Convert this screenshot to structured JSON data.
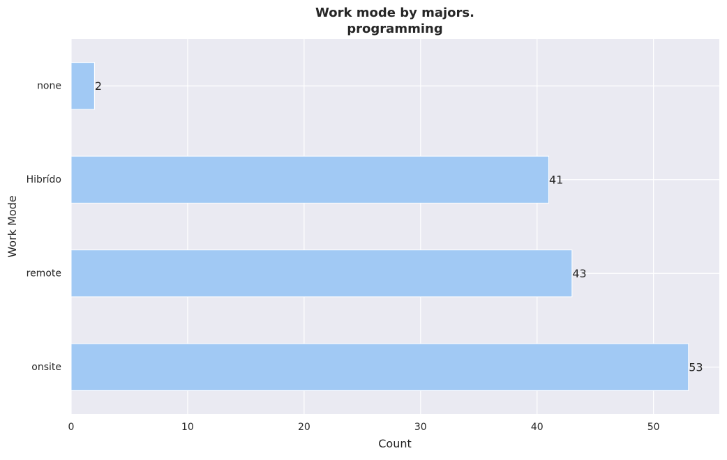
{
  "chart_data": {
    "type": "bar",
    "orientation": "horizontal",
    "title": "Work mode by majors.",
    "subtitle": "programming",
    "xlabel": "Count",
    "ylabel": "Work Mode",
    "categories": [
      "none",
      "Hibrído",
      "remote",
      "onsite"
    ],
    "values": [
      2,
      41,
      43,
      53
    ],
    "data_labels": [
      "2",
      "41",
      "43",
      "53"
    ],
    "xlim": [
      0,
      55.65
    ],
    "xticks": [
      0,
      10,
      20,
      30,
      40,
      50
    ],
    "xtick_labels": [
      "0",
      "10",
      "20",
      "30",
      "40",
      "50"
    ],
    "grid": true,
    "colors": {
      "bar": "#a1c9f4",
      "bar_edge": "#ffffff",
      "plot_background": "#eaeaf2",
      "grid": "#ffffff",
      "text": "#262626"
    }
  }
}
